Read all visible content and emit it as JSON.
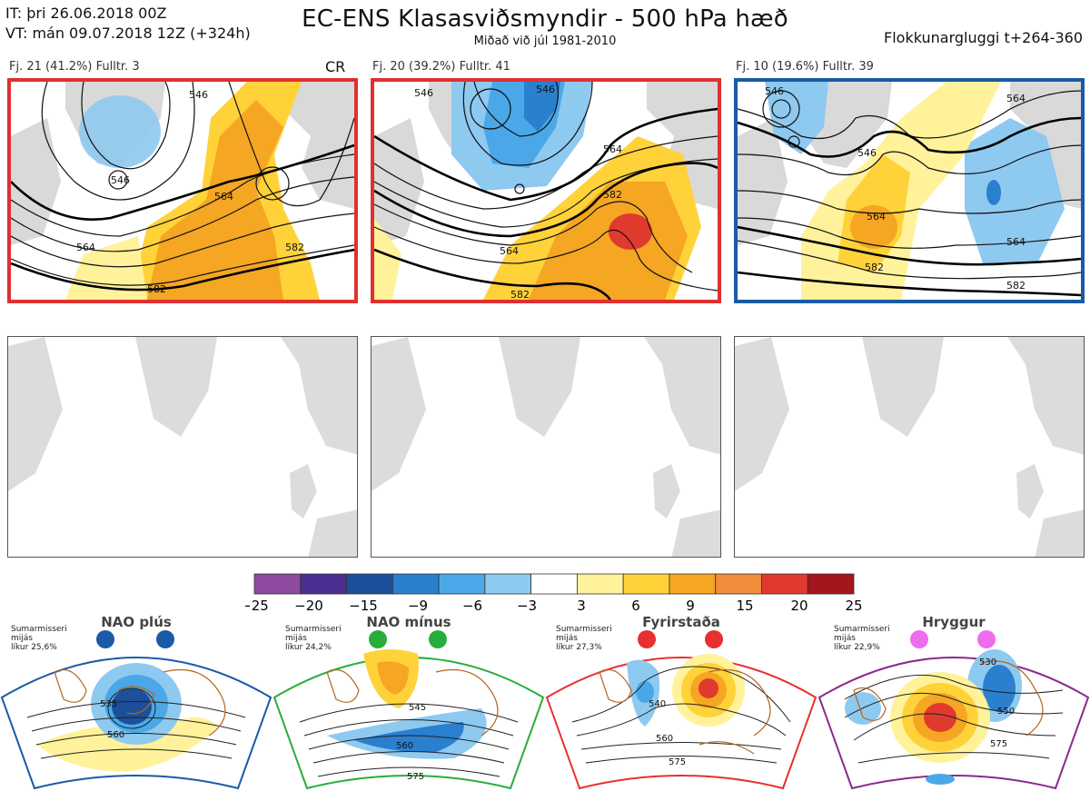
{
  "header": {
    "it_line": "IT: þri 26.06.2018 00Z",
    "vt_line": "VT: mán 09.07.2018 12Z  (+324h)",
    "title": "EC-ENS Klasasviðsmyndir - 500 hPa hæð",
    "subtitle": "Miðað við júl 1981-2010",
    "window": "Flokkunargluggi t+264-360"
  },
  "clusters": [
    {
      "label": "Fj. 21 (41.2%)   Fulltr. 3",
      "tag": "CR",
      "border_color": "#e03030",
      "contour_labels": [
        "546",
        "546",
        "564",
        "564",
        "582",
        "582"
      ]
    },
    {
      "label": "Fj. 20 (39.2%)   Fulltr. 41",
      "tag": "",
      "border_color": "#e03030",
      "contour_labels": [
        "546",
        "546",
        "564",
        "564",
        "582",
        "582"
      ]
    },
    {
      "label": "Fj. 10 (19.6%)   Fulltr. 39",
      "tag": "",
      "border_color": "#1a5aa6",
      "contour_labels": [
        "546",
        "564",
        "546",
        "564",
        "564",
        "582",
        "582"
      ]
    }
  ],
  "colorbar": {
    "ticks": [
      "−25",
      "−20",
      "−15",
      "−9",
      "−6",
      "−3",
      "3",
      "6",
      "9",
      "15",
      "20",
      "25"
    ],
    "colors": [
      "#8e4a9e",
      "#4b2e8f",
      "#1d4f9a",
      "#2a7fcf",
      "#4aa8e8",
      "#8ec9f0",
      "#ffffff",
      "#fff29a",
      "#ffd23a",
      "#f5a623",
      "#f08c3a",
      "#e03a2e",
      "#a3161b"
    ]
  },
  "regimes": [
    {
      "name": "NAO plús",
      "season": "Sumarmisseri",
      "line2": "mijás",
      "prob": "líkur 25,6%",
      "dot_color": "#1a5aa6",
      "border_color": "#1a5aa6",
      "contour_labels": [
        "535",
        "560"
      ]
    },
    {
      "name": "NAO mínus",
      "season": "Sumarmisseri",
      "line2": "mijás",
      "prob": "líkur 24,2%",
      "dot_color": "#27ae3a",
      "border_color": "#27ae3a",
      "contour_labels": [
        "545",
        "560",
        "575"
      ]
    },
    {
      "name": "Fyrirstaða",
      "season": "Sumarmisseri",
      "line2": "mijás",
      "prob": "líkur 27,3%",
      "dot_color": "#e83030",
      "border_color": "#e83030",
      "contour_labels": [
        "540",
        "560",
        "575"
      ]
    },
    {
      "name": "Hryggur",
      "season": "Sumarmisseri",
      "line2": "mijás",
      "prob": "líkur 22,9%",
      "dot_color": "#ee6cee",
      "border_color": "#8b2a8b",
      "contour_labels": [
        "530",
        "550",
        "575"
      ]
    }
  ]
}
